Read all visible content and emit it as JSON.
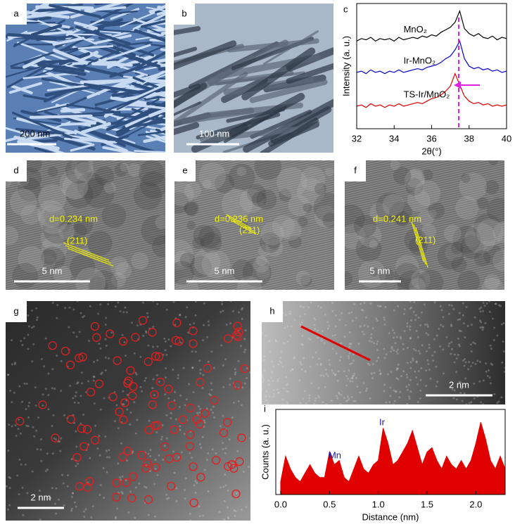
{
  "panels": [
    {
      "label": "a",
      "scale_bar": "200 nm"
    },
    {
      "label": "b",
      "scale_bar": "100 nm"
    },
    {
      "label": "d",
      "scale_bar": "5 nm",
      "spacing": "d=0.234 nm",
      "plane": "(211)"
    },
    {
      "label": "e",
      "scale_bar": "5 nm",
      "spacing": "d=0.236 nm",
      "plane": "(211)"
    },
    {
      "label": "f",
      "scale_bar": "5 nm",
      "spacing": "d=0.241 nm",
      "plane": "(211)"
    },
    {
      "label": "g",
      "scale_bar": "2 nm"
    },
    {
      "label": "h",
      "scale_bar": "2 nm"
    }
  ],
  "chart_data": [
    {
      "type": "line",
      "panel": "c",
      "xlabel": "2θ(°)",
      "ylabel": "Intensity (a. u.)",
      "x": [
        32,
        32.25,
        32.5,
        32.75,
        33,
        33.25,
        33.5,
        33.75,
        34,
        34.25,
        34.5,
        34.75,
        35,
        35.25,
        35.5,
        35.75,
        36,
        36.25,
        36.5,
        36.75,
        37,
        37.25,
        37.5,
        37.75,
        38,
        38.25,
        38.5,
        38.75,
        39,
        39.25,
        39.5,
        39.75,
        40
      ],
      "xlim": [
        32,
        40
      ],
      "xticks": [
        32,
        34,
        36,
        38,
        40
      ],
      "ylim": [
        0,
        10
      ],
      "series": [
        {
          "name": "MnO₂",
          "color": "#000000",
          "values": [
            7.0,
            7.2,
            7.1,
            7.3,
            7.0,
            7.2,
            7.1,
            7.2,
            7.0,
            7.3,
            7.1,
            7.2,
            7.3,
            7.2,
            7.4,
            7.3,
            7.5,
            7.4,
            7.7,
            7.9,
            8.1,
            8.5,
            9.4,
            8.0,
            7.6,
            7.4,
            7.6,
            7.3,
            7.2,
            7.4,
            7.1,
            7.3,
            7.2
          ]
        },
        {
          "name": "Ir-MnO₂",
          "color": "#0000cc",
          "values": [
            4.5,
            4.6,
            4.4,
            4.7,
            4.5,
            4.6,
            4.4,
            4.6,
            4.5,
            4.7,
            4.5,
            4.6,
            4.7,
            4.8,
            4.7,
            4.9,
            5.0,
            5.1,
            5.3,
            5.6,
            5.8,
            6.3,
            7.0,
            5.6,
            5.0,
            4.8,
            4.9,
            4.7,
            4.8,
            4.6,
            4.7,
            4.5,
            4.6
          ]
        },
        {
          "name": "TS-Ir/MnO₂",
          "color": "#e00000",
          "values": [
            1.8,
            1.9,
            1.7,
            2.0,
            1.8,
            1.9,
            1.7,
            1.9,
            1.8,
            2.0,
            1.8,
            1.9,
            2.0,
            2.1,
            2.0,
            2.2,
            2.4,
            2.5,
            2.7,
            3.0,
            3.4,
            4.4,
            3.5,
            2.6,
            2.2,
            2.0,
            2.1,
            1.9,
            2.0,
            1.8,
            1.9,
            1.8,
            1.9
          ]
        }
      ]
    },
    {
      "type": "area",
      "panel": "i",
      "xlabel": "Distance (nm)",
      "ylabel": "Counts (a. u.)",
      "x": [
        0,
        0.05,
        0.1,
        0.15,
        0.2,
        0.25,
        0.3,
        0.35,
        0.4,
        0.45,
        0.5,
        0.55,
        0.6,
        0.65,
        0.7,
        0.75,
        0.8,
        0.85,
        0.9,
        0.95,
        1.0,
        1.05,
        1.1,
        1.15,
        1.2,
        1.25,
        1.3,
        1.35,
        1.4,
        1.45,
        1.5,
        1.55,
        1.6,
        1.65,
        1.7,
        1.75,
        1.8,
        1.85,
        1.9,
        1.95,
        2.0,
        2.05,
        2.1,
        2.15,
        2.2,
        2.25,
        2.3
      ],
      "xlim": [
        -0.05,
        2.3
      ],
      "xticks": [
        {
          "value": 0,
          "label": "0.0"
        },
        0.5,
        {
          "value": 1,
          "label": "1.0"
        },
        1.5,
        {
          "value": 2,
          "label": "2.0"
        }
      ],
      "ylim": [
        0,
        10
      ],
      "annotations": [
        "Mn",
        "Ir"
      ],
      "series": [
        {
          "color": "#e00000",
          "values": [
            1.5,
            4.5,
            3,
            2,
            1.5,
            2.5,
            3.5,
            2.5,
            2,
            2,
            5,
            3.5,
            4,
            2,
            1.5,
            3,
            4.5,
            3,
            2.5,
            3.5,
            4,
            7.8,
            6,
            3.5,
            4,
            5,
            6,
            7.5,
            5.5,
            3.5,
            5,
            5.5,
            4,
            3,
            4.5,
            3.5,
            3,
            4,
            3,
            4,
            6,
            8.5,
            6.5,
            4,
            3,
            4.5,
            3
          ]
        }
      ]
    }
  ]
}
